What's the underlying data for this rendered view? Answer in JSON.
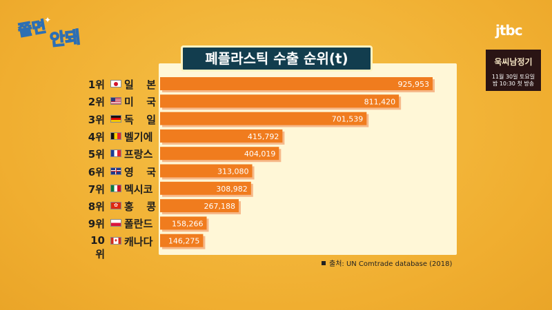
{
  "show_logo": "쫄면안돼",
  "network": "jtbc",
  "promo": {
    "title": "욱씨남정기",
    "date": "11월 30일 토요일",
    "time": "밤 10:30 첫 방송"
  },
  "chart_data": {
    "type": "bar",
    "orientation": "horizontal",
    "title": "폐플라스틱 수출 순위(t)",
    "categories": [
      "1위 일 본",
      "2위 미 국",
      "3위 독 일",
      "4위 벨기에",
      "5위 프랑스",
      "6위 영 국",
      "7위 멕시코",
      "8위 홍 콩",
      "9위 폴란드",
      "10위 캐나다"
    ],
    "ranks": [
      "1위",
      "2위",
      "3위",
      "4위",
      "5위",
      "6위",
      "7위",
      "8위",
      "9위",
      "10위"
    ],
    "countries": [
      "일 본",
      "미 국",
      "독 일",
      "벨기에",
      "프랑스",
      "영 국",
      "멕시코",
      "홍 콩",
      "폴란드",
      "캐나다"
    ],
    "flags": [
      "japan-flag-icon",
      "usa-flag-icon",
      "germany-flag-icon",
      "belgium-flag-icon",
      "france-flag-icon",
      "uk-flag-icon",
      "mexico-flag-icon",
      "hongkong-flag-icon",
      "poland-flag-icon",
      "canada-flag-icon"
    ],
    "values": [
      925953,
      811420,
      701539,
      415792,
      404019,
      313080,
      308982,
      267188,
      158266,
      146275
    ],
    "value_labels": [
      "925,953",
      "811,420",
      "701,539",
      "415,792",
      "404,019",
      "313,080",
      "308,982",
      "267,188",
      "158,266",
      "146,275"
    ],
    "bar_color": "#f07c1e",
    "bar_shadow_color": "#f6b98a",
    "source": "출처: UN Comtrade database (2018)"
  }
}
